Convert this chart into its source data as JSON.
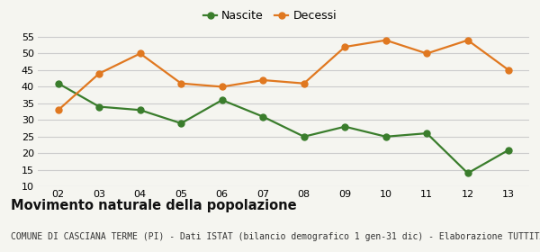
{
  "years": [
    2,
    3,
    4,
    5,
    6,
    7,
    8,
    9,
    10,
    11,
    12,
    13
  ],
  "nascite": [
    41,
    34,
    33,
    29,
    36,
    31,
    25,
    28,
    25,
    26,
    14,
    21
  ],
  "decessi": [
    33,
    44,
    50,
    41,
    40,
    42,
    41,
    52,
    54,
    50,
    54,
    45
  ],
  "nascite_color": "#3a7d2c",
  "decessi_color": "#e07820",
  "background_color": "#f5f5f0",
  "grid_color": "#cccccc",
  "ylim": [
    10,
    57
  ],
  "yticks": [
    10,
    15,
    20,
    25,
    30,
    35,
    40,
    45,
    50,
    55
  ],
  "xlabel_labels": [
    "02",
    "03",
    "04",
    "05",
    "06",
    "07",
    "08",
    "09",
    "10",
    "11",
    "12",
    "13"
  ],
  "legend_nascite": "Nascite",
  "legend_decessi": "Decessi",
  "title": "Movimento naturale della popolazione",
  "subtitle": "COMUNE DI CASCIANA TERME (PI) - Dati ISTAT (bilancio demografico 1 gen-31 dic) - Elaborazione TUTTITALIA.IT",
  "title_fontsize": 10.5,
  "subtitle_fontsize": 7.0,
  "marker_size": 5,
  "line_width": 1.6
}
